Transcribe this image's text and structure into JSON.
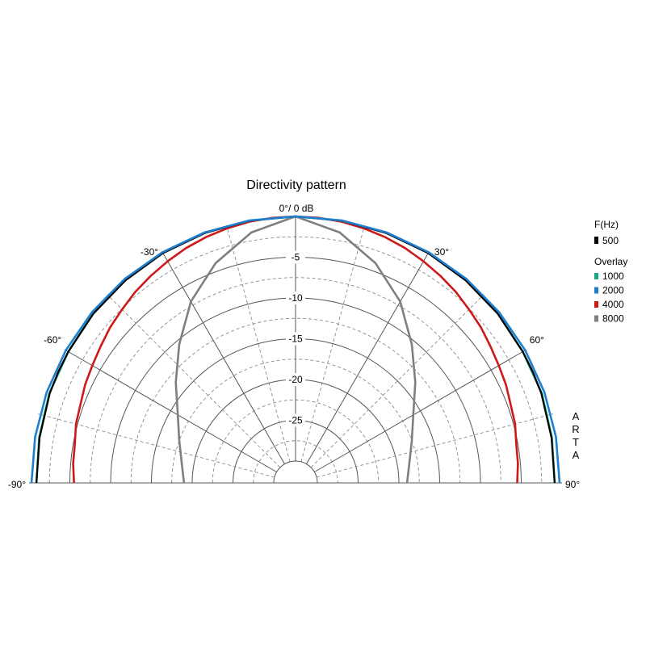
{
  "chart_data": {
    "type": "polar",
    "title": "Directivity pattern",
    "top_label": "0°/ 0 dB",
    "angle_range": [
      -90,
      90
    ],
    "angle_ticks": [
      {
        "angle": -90,
        "label": "-90°"
      },
      {
        "angle": -60,
        "label": "-60°"
      },
      {
        "angle": -30,
        "label": "-30°"
      },
      {
        "angle": 30,
        "label": "30°"
      },
      {
        "angle": 60,
        "label": "60°"
      },
      {
        "angle": 90,
        "label": "90°"
      }
    ],
    "db_range": [
      -30,
      0
    ],
    "db_ticks": [
      {
        "value": -5,
        "label": "-5"
      },
      {
        "value": -10,
        "label": "-10"
      },
      {
        "value": -15,
        "label": "-15"
      },
      {
        "value": -20,
        "label": "-20"
      },
      {
        "value": -25,
        "label": "-25"
      }
    ],
    "grid": true,
    "watermark": "ARTA",
    "legend": {
      "position": "right",
      "header": "F(Hz)",
      "overlay_header": "Overlay"
    },
    "series": [
      {
        "name": "500",
        "color": "#000000",
        "points": [
          [
            -90,
            -0.9
          ],
          [
            -80,
            -0.8
          ],
          [
            -70,
            -0.6
          ],
          [
            -65,
            -0.55
          ],
          [
            -60,
            -0.5
          ],
          [
            -50,
            -0.35
          ],
          [
            -40,
            -0.25
          ],
          [
            -30,
            -0.15
          ],
          [
            -20,
            -0.08
          ],
          [
            -10,
            -0.03
          ],
          [
            0,
            0
          ],
          [
            10,
            -0.03
          ],
          [
            20,
            -0.08
          ],
          [
            30,
            -0.15
          ],
          [
            40,
            -0.25
          ],
          [
            50,
            -0.35
          ],
          [
            60,
            -0.5
          ],
          [
            65,
            -0.55
          ],
          [
            70,
            -0.6
          ],
          [
            80,
            -0.8
          ],
          [
            90,
            -0.9
          ]
        ]
      },
      {
        "name": "1000",
        "color": "#1aa68a",
        "points": [
          [
            -90,
            -0.9
          ],
          [
            -80,
            -0.75
          ],
          [
            -70,
            -0.55
          ],
          [
            -60,
            -0.5
          ],
          [
            -50,
            -0.3
          ],
          [
            -40,
            -0.2
          ],
          [
            -30,
            -0.1
          ],
          [
            -20,
            -0.05
          ],
          [
            -10,
            -0.02
          ],
          [
            0,
            0
          ],
          [
            10,
            -0.02
          ],
          [
            20,
            -0.05
          ],
          [
            30,
            -0.1
          ],
          [
            40,
            -0.2
          ],
          [
            50,
            -0.3
          ],
          [
            60,
            -0.5
          ],
          [
            70,
            -0.55
          ],
          [
            80,
            -0.75
          ],
          [
            90,
            -0.9
          ]
        ]
      },
      {
        "name": "2000",
        "color": "#1e7fd0",
        "points": [
          [
            -90,
            -0.3
          ],
          [
            -80,
            -0.25
          ],
          [
            -70,
            -0.2
          ],
          [
            -60,
            -0.15
          ],
          [
            -50,
            -0.1
          ],
          [
            -40,
            -0.05
          ],
          [
            -30,
            -0.02
          ],
          [
            -20,
            0
          ],
          [
            -10,
            0
          ],
          [
            0,
            0
          ],
          [
            10,
            0
          ],
          [
            20,
            0
          ],
          [
            30,
            -0.02
          ],
          [
            40,
            -0.05
          ],
          [
            50,
            -0.1
          ],
          [
            60,
            -0.15
          ],
          [
            70,
            -0.2
          ],
          [
            80,
            -0.25
          ],
          [
            90,
            -0.3
          ]
        ]
      },
      {
        "name": "4000",
        "color": "#cc1a1a",
        "points": [
          [
            -90,
            -5.5
          ],
          [
            -85,
            -5.3
          ],
          [
            -80,
            -5.2
          ],
          [
            -75,
            -4.8
          ],
          [
            -70,
            -4.6
          ],
          [
            -65,
            -4.2
          ],
          [
            -60,
            -3.9
          ],
          [
            -55,
            -3.5
          ],
          [
            -50,
            -3.0
          ],
          [
            -45,
            -2.6
          ],
          [
            -40,
            -2.1
          ],
          [
            -35,
            -1.7
          ],
          [
            -30,
            -1.3
          ],
          [
            -25,
            -0.9
          ],
          [
            -20,
            -0.6
          ],
          [
            -15,
            -0.35
          ],
          [
            -10,
            -0.15
          ],
          [
            -5,
            -0.05
          ],
          [
            0,
            0
          ],
          [
            5,
            -0.05
          ],
          [
            10,
            -0.15
          ],
          [
            15,
            -0.35
          ],
          [
            20,
            -0.6
          ],
          [
            25,
            -0.9
          ],
          [
            30,
            -1.3
          ],
          [
            35,
            -1.7
          ],
          [
            40,
            -2.1
          ],
          [
            45,
            -2.6
          ],
          [
            50,
            -3.0
          ],
          [
            55,
            -3.5
          ],
          [
            60,
            -3.9
          ],
          [
            65,
            -4.2
          ],
          [
            70,
            -4.6
          ],
          [
            75,
            -4.8
          ],
          [
            80,
            -5.2
          ],
          [
            85,
            -5.3
          ],
          [
            90,
            -5.5
          ]
        ]
      },
      {
        "name": "8000",
        "color": "#7f7f7f",
        "points": [
          [
            -90,
            -19
          ],
          [
            -80,
            -18.5
          ],
          [
            -70,
            -17.5
          ],
          [
            -60,
            -16
          ],
          [
            -50,
            -13.5
          ],
          [
            -40,
            -10.5
          ],
          [
            -30,
            -7
          ],
          [
            -20,
            -4
          ],
          [
            -10,
            -1.5
          ],
          [
            0,
            0
          ],
          [
            10,
            -1.5
          ],
          [
            20,
            -4
          ],
          [
            30,
            -7
          ],
          [
            40,
            -10.5
          ],
          [
            50,
            -13.5
          ],
          [
            60,
            -16
          ],
          [
            70,
            -17.5
          ],
          [
            80,
            -18.5
          ],
          [
            90,
            -19
          ]
        ]
      }
    ]
  }
}
